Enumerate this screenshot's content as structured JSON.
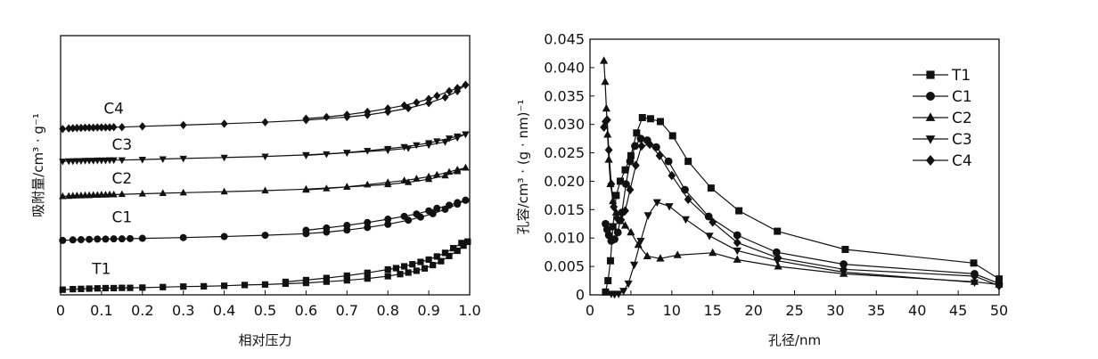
{
  "chart_data": [
    {
      "type": "line",
      "title": "",
      "xlabel": "相对压力",
      "ylabel": "吸附量/cm³ · g⁻¹",
      "xlim": [
        0,
        1.0
      ],
      "x_ticks": [
        "0",
        "0.1",
        "0.2",
        "0.3",
        "0.4",
        "0.5",
        "0.6",
        "0.7",
        "0.8",
        "0.9",
        "1.0"
      ],
      "y_ticks": [],
      "ylim": [
        0,
        100
      ],
      "grid": false,
      "legend": "none",
      "series_labels_on_curves": true,
      "series": [
        {
          "name": "T1",
          "marker": "square",
          "x": [
            0.005,
            0.03,
            0.05,
            0.07,
            0.09,
            0.11,
            0.13,
            0.15,
            0.17,
            0.2,
            0.25,
            0.3,
            0.35,
            0.4,
            0.45,
            0.5,
            0.55,
            0.6,
            0.65,
            0.7,
            0.75,
            0.8,
            0.83,
            0.85,
            0.87,
            0.89,
            0.91,
            0.93,
            0.95,
            0.97,
            0.985,
            0.995
          ],
          "y": [
            2.0,
            2.2,
            2.3,
            2.4,
            2.5,
            2.6,
            2.6,
            2.7,
            2.7,
            2.8,
            3.0,
            3.2,
            3.3,
            3.5,
            3.8,
            4.0,
            4.3,
            4.6,
            5.1,
            5.6,
            6.3,
            7.2,
            8.0,
            8.6,
            9.3,
            10.2,
            11.5,
            13.0,
            15.0,
            17.0,
            19.0,
            20.5
          ],
          "desorption_x": [
            0.995,
            0.98,
            0.96,
            0.94,
            0.92,
            0.9,
            0.88,
            0.86,
            0.84,
            0.82,
            0.8,
            0.75,
            0.7,
            0.65,
            0.6,
            0.55
          ],
          "desorption_y": [
            20.5,
            20.0,
            18.0,
            16.2,
            14.8,
            13.6,
            12.7,
            11.8,
            11.0,
            10.3,
            9.8,
            8.5,
            7.4,
            6.5,
            5.7,
            5.0
          ],
          "label_at": [
            0.1,
            8
          ]
        },
        {
          "name": "C1",
          "marker": "circle",
          "x": [
            0.005,
            0.03,
            0.05,
            0.07,
            0.09,
            0.11,
            0.13,
            0.15,
            0.17,
            0.2,
            0.3,
            0.4,
            0.5,
            0.6,
            0.65,
            0.7,
            0.75,
            0.8,
            0.85,
            0.88,
            0.91,
            0.94,
            0.97,
            0.99
          ],
          "y": [
            21.0,
            21.2,
            21.3,
            21.4,
            21.5,
            21.5,
            21.6,
            21.6,
            21.7,
            21.8,
            22.1,
            22.5,
            23.0,
            23.6,
            24.2,
            25.0,
            26.0,
            27.2,
            28.8,
            30.0,
            31.3,
            33.0,
            35.0,
            36.5
          ],
          "desorption_x": [
            0.99,
            0.97,
            0.95,
            0.92,
            0.9,
            0.87,
            0.84,
            0.8,
            0.75,
            0.7,
            0.65,
            0.6
          ],
          "desorption_y": [
            36.5,
            35.6,
            34.6,
            33.4,
            32.4,
            31.2,
            30.3,
            29.2,
            27.9,
            26.8,
            25.8,
            24.9
          ],
          "label_at": [
            0.15,
            28
          ]
        },
        {
          "name": "C2",
          "marker": "triangle",
          "x": [
            0.005,
            0.02,
            0.03,
            0.04,
            0.05,
            0.06,
            0.07,
            0.08,
            0.09,
            0.1,
            0.11,
            0.12,
            0.13,
            0.15,
            0.2,
            0.25,
            0.3,
            0.4,
            0.5,
            0.6,
            0.7,
            0.8,
            0.85,
            0.9,
            0.94,
            0.97,
            0.99
          ],
          "y": [
            38.0,
            38.1,
            38.2,
            38.3,
            38.3,
            38.4,
            38.4,
            38.5,
            38.5,
            38.6,
            38.6,
            38.7,
            38.7,
            38.8,
            39.0,
            39.2,
            39.4,
            39.8,
            40.2,
            40.8,
            41.6,
            42.6,
            43.4,
            44.6,
            46.0,
            47.6,
            49.0
          ],
          "desorption_x": [
            0.99,
            0.97,
            0.95,
            0.92,
            0.9,
            0.87,
            0.84,
            0.8,
            0.75,
            0.7,
            0.65,
            0.6
          ],
          "desorption_y": [
            49.0,
            48.3,
            47.4,
            46.3,
            45.6,
            44.8,
            44.1,
            43.4,
            42.5,
            41.7,
            41.0,
            40.5
          ],
          "label_at": [
            0.15,
            43
          ]
        },
        {
          "name": "C3",
          "marker": "triangle-down",
          "x": [
            0.005,
            0.02,
            0.03,
            0.04,
            0.05,
            0.06,
            0.07,
            0.08,
            0.09,
            0.1,
            0.11,
            0.12,
            0.13,
            0.15,
            0.2,
            0.25,
            0.3,
            0.4,
            0.5,
            0.6,
            0.7,
            0.8,
            0.85,
            0.9,
            0.94,
            0.97,
            0.99
          ],
          "y": [
            51.5,
            51.6,
            51.6,
            51.7,
            51.7,
            51.8,
            51.8,
            51.8,
            51.9,
            51.9,
            51.9,
            52.0,
            52.0,
            52.0,
            52.2,
            52.4,
            52.6,
            53.0,
            53.4,
            54.0,
            54.8,
            55.8,
            56.6,
            57.8,
            59.0,
            60.6,
            62.0
          ],
          "desorption_x": [
            0.99,
            0.97,
            0.95,
            0.92,
            0.9,
            0.87,
            0.84,
            0.8,
            0.75,
            0.7,
            0.65,
            0.6
          ],
          "desorption_y": [
            62.0,
            61.2,
            60.4,
            59.3,
            58.6,
            57.8,
            57.1,
            56.4,
            55.6,
            54.9,
            54.3,
            53.8
          ],
          "label_at": [
            0.15,
            56
          ]
        },
        {
          "name": "C4",
          "marker": "diamond",
          "x": [
            0.005,
            0.02,
            0.03,
            0.04,
            0.05,
            0.06,
            0.07,
            0.08,
            0.09,
            0.1,
            0.11,
            0.12,
            0.13,
            0.15,
            0.2,
            0.3,
            0.4,
            0.5,
            0.6,
            0.7,
            0.75,
            0.8,
            0.85,
            0.9,
            0.94,
            0.97,
            0.99
          ],
          "y": [
            64.0,
            64.2,
            64.3,
            64.4,
            64.4,
            64.5,
            64.5,
            64.5,
            64.6,
            64.6,
            64.6,
            64.6,
            64.7,
            64.7,
            65.0,
            65.5,
            66.0,
            66.6,
            67.4,
            68.6,
            69.4,
            70.6,
            72.0,
            74.0,
            76.2,
            78.6,
            81.0
          ],
          "desorption_x": [
            0.99,
            0.97,
            0.95,
            0.92,
            0.9,
            0.87,
            0.84,
            0.8,
            0.75,
            0.7,
            0.65,
            0.6
          ],
          "desorption_y": [
            81.0,
            79.8,
            78.6,
            76.8,
            75.6,
            74.2,
            73.1,
            71.9,
            70.6,
            69.5,
            68.6,
            68.0
          ],
          "label_at": [
            0.13,
            70
          ]
        }
      ]
    },
    {
      "type": "line",
      "title": "",
      "xlabel": "孔径/nm",
      "ylabel": "孔容/cm³ · (g · nm)⁻¹",
      "xlim": [
        0,
        50
      ],
      "ylim": [
        0,
        0.045
      ],
      "x_ticks": [
        "0",
        "5",
        "10",
        "15",
        "20",
        "25",
        "30",
        "35",
        "40",
        "45",
        "50"
      ],
      "y_ticks": [
        "0",
        "0.005",
        "0.010",
        "0.015",
        "0.020",
        "0.025",
        "0.030",
        "0.035",
        "0.040",
        "0.045"
      ],
      "grid": false,
      "legend": "top-right",
      "series": [
        {
          "name": "T1",
          "marker": "square",
          "x": [
            1.9,
            2.2,
            2.5,
            2.8,
            3.2,
            3.7,
            4.3,
            5.0,
            5.7,
            6.4,
            7.4,
            8.6,
            10.1,
            12.0,
            14.8,
            18.2,
            22.9,
            31.2,
            46.9,
            50
          ],
          "y": [
            0.0005,
            0.0025,
            0.006,
            0.012,
            0.0175,
            0.02,
            0.022,
            0.0245,
            0.0285,
            0.0312,
            0.031,
            0.0305,
            0.028,
            0.0235,
            0.0188,
            0.0148,
            0.0112,
            0.008,
            0.0056,
            0.0028
          ]
        },
        {
          "name": "C1",
          "marker": "circle",
          "x": [
            1.9,
            2.1,
            2.3,
            2.6,
            3.0,
            3.4,
            3.9,
            4.4,
            4.9,
            5.5,
            6.2,
            7.0,
            8.1,
            9.6,
            11.6,
            14.5,
            18.0,
            22.8,
            31.0,
            47.0,
            50
          ],
          "y": [
            0.0125,
            0.0115,
            0.0105,
            0.0095,
            0.0098,
            0.011,
            0.0145,
            0.0195,
            0.0235,
            0.0262,
            0.0275,
            0.0272,
            0.026,
            0.0235,
            0.0185,
            0.0138,
            0.0105,
            0.0075,
            0.0054,
            0.0037,
            0.002
          ]
        },
        {
          "name": "C2",
          "marker": "triangle",
          "x": [
            1.7,
            1.85,
            2.0,
            2.15,
            2.3,
            2.5,
            2.8,
            3.2,
            3.7,
            4.3,
            5.0,
            5.9,
            7.0,
            8.6,
            10.7,
            15.0,
            18.0,
            23.0,
            31.0,
            47.0,
            50
          ],
          "y": [
            0.0412,
            0.0375,
            0.0328,
            0.0282,
            0.0238,
            0.0195,
            0.0165,
            0.0145,
            0.013,
            0.0122,
            0.011,
            0.0088,
            0.0068,
            0.0064,
            0.007,
            0.0074,
            0.0062,
            0.005,
            0.0037,
            0.0023,
            0.0018
          ]
        },
        {
          "name": "C3",
          "marker": "triangle-down",
          "x": [
            2.6,
            3.0,
            3.5,
            4.1,
            4.7,
            5.4,
            6.2,
            7.1,
            8.2,
            9.7,
            11.7,
            14.6,
            18.0,
            22.9,
            31.0,
            47.0
          ],
          "y": [
            0.0002,
            0.0001,
            0.0002,
            0.0007,
            0.002,
            0.0053,
            0.0095,
            0.014,
            0.0163,
            0.0156,
            0.0133,
            0.0104,
            0.0078,
            0.006,
            0.004,
            0.0022
          ]
        },
        {
          "name": "C4",
          "marker": "diamond",
          "x": [
            1.7,
            1.9,
            2.1,
            2.3,
            2.6,
            2.9,
            3.3,
            3.8,
            4.3,
            4.9,
            5.6,
            6.3,
            7.3,
            8.5,
            10.0,
            12.0,
            15.0,
            18.0,
            23.0,
            31.0,
            47.0,
            50
          ],
          "y": [
            0.0295,
            0.0305,
            0.0308,
            0.0255,
            0.0195,
            0.0155,
            0.0135,
            0.0132,
            0.0148,
            0.0185,
            0.0228,
            0.0262,
            0.0265,
            0.0245,
            0.021,
            0.0168,
            0.0128,
            0.0092,
            0.0065,
            0.0045,
            0.0033,
            0.0016
          ]
        }
      ]
    }
  ]
}
